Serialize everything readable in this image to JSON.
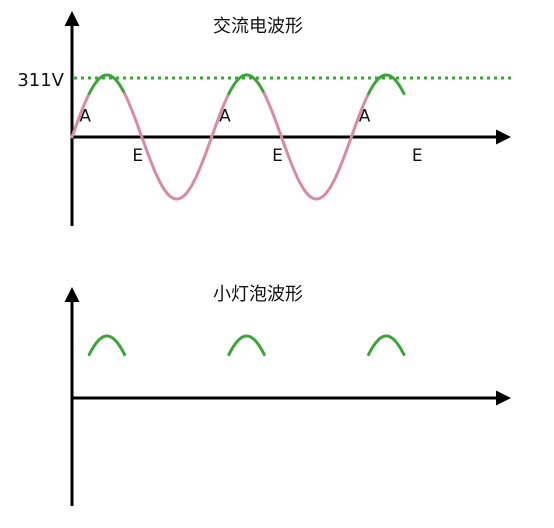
{
  "colors": {
    "axis": "#000000",
    "peak_line": "#3aa63a",
    "bulb_on": "#3aa63a",
    "bulb_off": "#d98aa6"
  },
  "chart_data": [
    {
      "type": "line",
      "title": "交流电波形",
      "amplitude_label": "311V",
      "amplitude": 311,
      "cycles": 3,
      "start_phase_deg": 0,
      "threshold_fraction_of_peak": 0.7,
      "peak_reference_line": {
        "style": "dotted",
        "color": "#3aa63a"
      },
      "markers": [
        {
          "label": "A",
          "cycle": 0,
          "meaning": "lamp turns on"
        },
        {
          "label": "E",
          "cycle": 0,
          "meaning": "lamp turns off"
        },
        {
          "label": "A",
          "cycle": 1,
          "meaning": "lamp turns on"
        },
        {
          "label": "E",
          "cycle": 1,
          "meaning": "lamp turns off"
        },
        {
          "label": "A",
          "cycle": 2,
          "meaning": "lamp turns on"
        },
        {
          "label": "E",
          "cycle": 2,
          "meaning": "lamp turns off"
        }
      ],
      "series": [
        {
          "segment": "below-threshold",
          "color": "#d98aa6"
        },
        {
          "segment": "above-threshold",
          "color": "#3aa63a"
        }
      ]
    },
    {
      "type": "line",
      "title": "小灯泡波形",
      "cycles": 3,
      "description": "only the above-threshold positive half portions remain",
      "series": [
        {
          "segment": "above-threshold",
          "color": "#3aa63a"
        }
      ]
    }
  ]
}
